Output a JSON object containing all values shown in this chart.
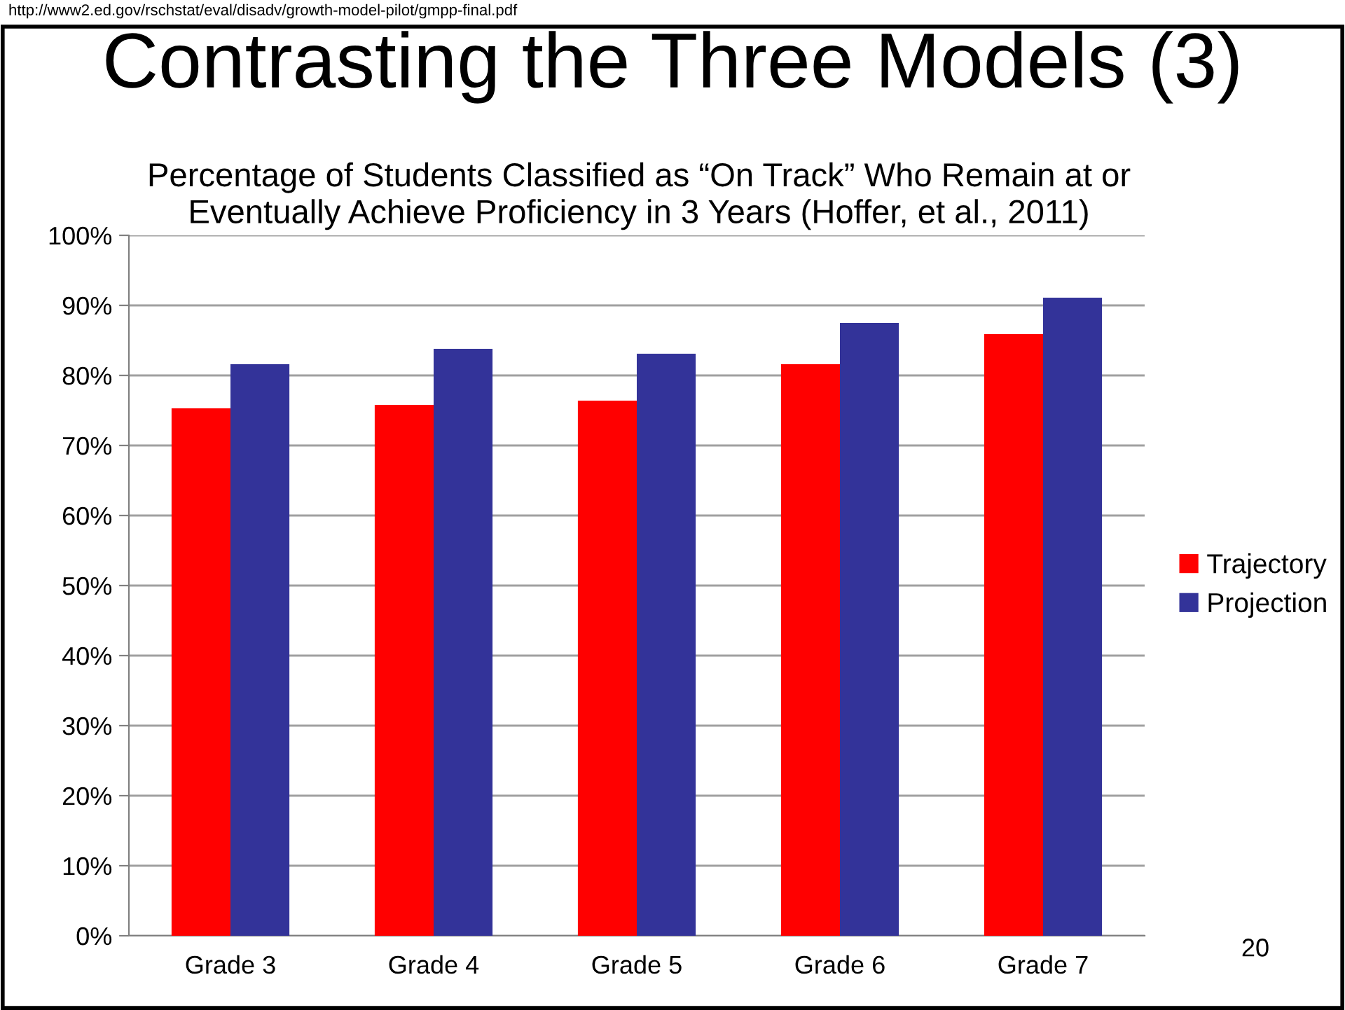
{
  "chart_data": {
    "type": "bar",
    "title": "Contrasting the Three Models (3)",
    "subtitle": "Percentage of Students Classified as “On Track” Who Remain at or\nEventually Achieve Proficiency in 3 Years (Hoffer, et al., 2011)",
    "categories": [
      "Grade 3",
      "Grade 4",
      "Grade 5",
      "Grade 6",
      "Grade 7"
    ],
    "series": [
      {
        "name": "Trajectory",
        "color": "#ff0000",
        "values": [
          75.3,
          75.8,
          76.4,
          81.6,
          85.9
        ]
      },
      {
        "name": "Projection",
        "color": "#333399",
        "values": [
          81.6,
          83.8,
          83.1,
          87.5,
          91.1
        ]
      }
    ],
    "ylim": [
      0,
      100
    ],
    "yticks": [
      {
        "value": 0,
        "label": "0%"
      },
      {
        "value": 10,
        "label": "10%"
      },
      {
        "value": 20,
        "label": "20%"
      },
      {
        "value": 30,
        "label": "30%"
      },
      {
        "value": 40,
        "label": "40%"
      },
      {
        "value": 50,
        "label": "50%"
      },
      {
        "value": 60,
        "label": "60%"
      },
      {
        "value": 70,
        "label": "70%"
      },
      {
        "value": 80,
        "label": "80%"
      },
      {
        "value": 90,
        "label": "90%"
      },
      {
        "value": 100,
        "label": "100%"
      }
    ],
    "grid": "y",
    "legend": "right",
    "annotations": [
      "http://www2.ed.gov/rschstat/eval/disadv/growth-model-pilot/gmpp-final.pdf",
      "20"
    ]
  }
}
